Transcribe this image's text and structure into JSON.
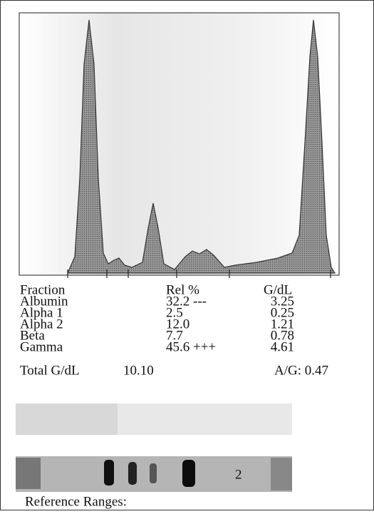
{
  "table": {
    "header": [
      "Fraction",
      "Rel %",
      "G/dL"
    ],
    "rows": [
      [
        "Albumin",
        "32.2 ---",
        "3.25"
      ],
      [
        "Alpha 1",
        "2.5",
        "0.25"
      ],
      [
        "Alpha 2",
        "12.0",
        "1.21"
      ],
      [
        "Beta",
        "7.7",
        "0.78"
      ],
      [
        "Gamma",
        "45.6 +++",
        "4.61"
      ]
    ]
  },
  "totals": {
    "label": "Total G/dL",
    "value": "10.10",
    "ratio": "A/G: 0.47"
  },
  "gel": {
    "label": "2"
  },
  "footer": {
    "label": "Reference Ranges:"
  }
}
